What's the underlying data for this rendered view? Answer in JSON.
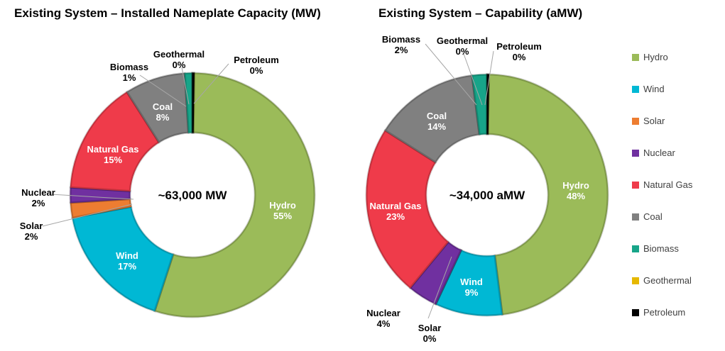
{
  "colors": {
    "Hydro": "#9bbb59",
    "Wind": "#00b8d4",
    "Solar": "#ed7d31",
    "Nuclear": "#7030a0",
    "Natural Gas": "#ef3b4a",
    "Coal": "#808080",
    "Biomass": "#17a589",
    "Geothermal": "#e6b800",
    "Petroleum": "#000000"
  },
  "legend": {
    "items": [
      "Hydro",
      "Wind",
      "Solar",
      "Nuclear",
      "Natural Gas",
      "Coal",
      "Biomass",
      "Geothermal",
      "Petroleum"
    ],
    "placement": "right"
  },
  "chart_data": [
    {
      "type": "pie",
      "title": "Existing System – Installed Nameplate Capacity (MW)",
      "center_label": "~63,000 MW",
      "categories": [
        "Hydro",
        "Wind",
        "Solar",
        "Nuclear",
        "Natural Gas",
        "Coal",
        "Biomass",
        "Geothermal",
        "Petroleum"
      ],
      "values": [
        55,
        17,
        2,
        2,
        15,
        8,
        1,
        0,
        0
      ],
      "data_labels": [
        "Hydro\n55%",
        "Wind\n17%",
        "Solar\n2%",
        "Nuclear\n2%",
        "Natural Gas\n15%",
        "Coal\n8%",
        "Biomass\n1%",
        "Geothermal\n0%",
        "Petroleum\n0%"
      ]
    },
    {
      "type": "pie",
      "title": "Existing System – Capability (aMW)",
      "center_label": "~34,000 aMW",
      "categories": [
        "Hydro",
        "Wind",
        "Solar",
        "Nuclear",
        "Natural Gas",
        "Coal",
        "Biomass",
        "Geothermal",
        "Petroleum"
      ],
      "values": [
        48,
        9,
        0,
        4,
        23,
        14,
        2,
        0,
        0
      ],
      "data_labels": [
        "Hydro\n48%",
        "Wind\n9%",
        "Solar\n0%",
        "Nuclear\n4%",
        "Natural Gas\n23%",
        "Coal\n14%",
        "Biomass\n2%",
        "Geothermal\n0%",
        "Petroleum\n0%"
      ]
    }
  ]
}
